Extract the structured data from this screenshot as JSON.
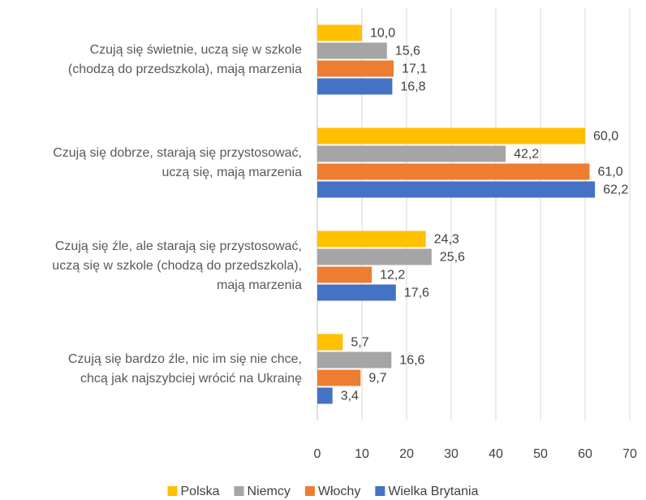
{
  "chart_data": {
    "type": "bar",
    "orientation": "horizontal",
    "categories": [
      "Czują się świetnie, uczą się w szkole\n(chodzą do przedszkola), mają marzenia",
      "Czują się dobrze, starają się przystosować,\nuczą się, mają marzenia",
      "Czują się źle, ale starają się przystosować,\nuczą się w szkole (chodzą do przedszkola),\nmają marzenia",
      "Czują się bardzo źle, nic im się nie chce,\nchcą jak najszybciej wrócić na Ukrainę"
    ],
    "series": [
      {
        "name": "Polska",
        "color": "#FFC000",
        "values": [
          10.0,
          60.0,
          24.3,
          5.7
        ],
        "value_labels": [
          "10,0",
          "60,0",
          "24,3",
          "5,7"
        ]
      },
      {
        "name": "Niemcy",
        "color": "#A5A5A5",
        "values": [
          15.6,
          42.2,
          25.6,
          16.6
        ],
        "value_labels": [
          "15,6",
          "42,2",
          "25,6",
          "16,6"
        ]
      },
      {
        "name": "Włochy",
        "color": "#ED7D31",
        "values": [
          17.1,
          61.0,
          12.2,
          9.7
        ],
        "value_labels": [
          "17,1",
          "61,0",
          "12,2",
          "9,7"
        ]
      },
      {
        "name": "Wielka Brytania",
        "color": "#4472C4",
        "values": [
          16.8,
          62.2,
          17.6,
          3.4
        ],
        "value_labels": [
          "16,8",
          "62,2",
          "17,6",
          "3,4"
        ]
      }
    ],
    "xlim": [
      0,
      70
    ],
    "xticks": [
      0,
      10,
      20,
      30,
      40,
      50,
      60,
      70
    ],
    "grid": true,
    "legend": "bottom"
  }
}
